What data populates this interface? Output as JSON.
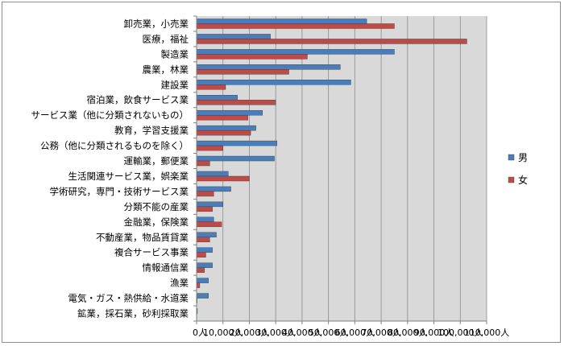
{
  "chart_data": {
    "type": "bar",
    "orientation": "horizontal",
    "categories": [
      "卸売業，小売業",
      "医療，福祉",
      "製造業",
      "農業，林業",
      "建設業",
      "宿泊業，飲食サービス業",
      "サービス業（他に分類されないもの）",
      "教育，学習支援業",
      "公務（他に分類されるものを除く）",
      "運輸業，郵便業",
      "生活関連サービス業，娯楽業",
      "学術研究，専門・技術サービス業",
      "分類不能の産業",
      "金融業，保険業",
      "不動産業，物品賃貸業",
      "複合サービス事業",
      "情報通信業",
      "漁業",
      "電気・ガス・熱供給・水道業",
      "鉱業，採石業，砂利採取業"
    ],
    "series": [
      {
        "name": "男",
        "color": "#4a7ebb",
        "values": [
          64500,
          28000,
          75000,
          54500,
          58500,
          15500,
          25000,
          22500,
          30500,
          29500,
          12000,
          13000,
          10000,
          6500,
          7500,
          6000,
          6000,
          4500,
          4500,
          300
        ]
      },
      {
        "name": "女",
        "color": "#be4b48",
        "values": [
          75000,
          102500,
          42000,
          35000,
          11000,
          30000,
          19500,
          20500,
          10000,
          5000,
          20000,
          6500,
          6000,
          9500,
          5000,
          3500,
          3000,
          1200,
          200,
          100
        ]
      }
    ],
    "x_ticks": [
      "0人",
      "10,000人",
      "20,000人",
      "30,000人",
      "40,000人",
      "50,000人",
      "60,000人",
      "70,000人",
      "80,000人",
      "90,000人",
      "100,000人",
      "110,000人"
    ],
    "xlim": [
      0,
      110000
    ],
    "grid": true,
    "legend_position": "right"
  }
}
